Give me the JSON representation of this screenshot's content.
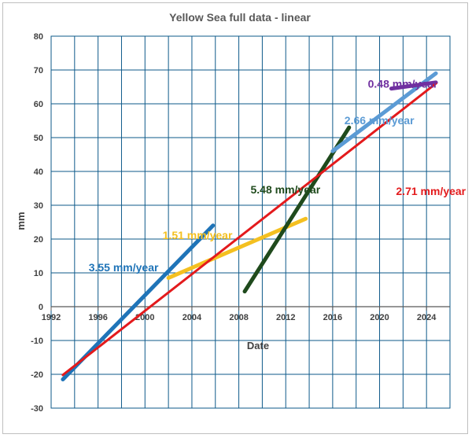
{
  "chart_data": {
    "type": "line",
    "title": "Yellow Sea full data - linear",
    "xlabel": "Date",
    "ylabel": "mm",
    "xlim": [
      1992,
      2026
    ],
    "ylim": [
      -30,
      80
    ],
    "x_ticks": [
      1992,
      1996,
      2000,
      2004,
      2008,
      2012,
      2016,
      2020,
      2024
    ],
    "y_ticks": [
      -30,
      -20,
      -10,
      0,
      10,
      20,
      30,
      40,
      50,
      60,
      70,
      80
    ],
    "grid": true,
    "legend": "none",
    "series": [
      {
        "label": "3.55 mm/year",
        "color": "#1f74b8",
        "x": [
          1993.0,
          2005.8
        ],
        "y": [
          -21.5,
          24.0
        ],
        "label_at": [
          1995.2,
          10.5
        ]
      },
      {
        "label": "1.51 mm/year",
        "color": "#f4c020",
        "x": [
          2002.0,
          2013.7
        ],
        "y": [
          8.5,
          26.0
        ],
        "label_at": [
          2001.5,
          20.0
        ]
      },
      {
        "label": "5.48 mm/year",
        "color": "#1f4a1c",
        "x": [
          2008.5,
          2017.4
        ],
        "y": [
          4.5,
          53.0
        ],
        "label_at": [
          2009.0,
          33.5
        ]
      },
      {
        "label": "2.66 mm/year",
        "color": "#5b9bd5",
        "x": [
          2016.0,
          2024.8
        ],
        "y": [
          46.0,
          69.0
        ],
        "label_at": [
          2017.0,
          54.0
        ]
      },
      {
        "label": "0.48 mm/year",
        "color": "#7030a0",
        "x": [
          2021.0,
          2024.8
        ],
        "y": [
          64.5,
          66.3
        ],
        "label_at": [
          2019.0,
          64.8
        ]
      },
      {
        "label": "2.71 mm/year",
        "color": "#e31a1c",
        "x": [
          1993.0,
          2024.8
        ],
        "y": [
          -20.2,
          66.0
        ],
        "label_at": [
          2021.4,
          33.0
        ]
      }
    ]
  }
}
